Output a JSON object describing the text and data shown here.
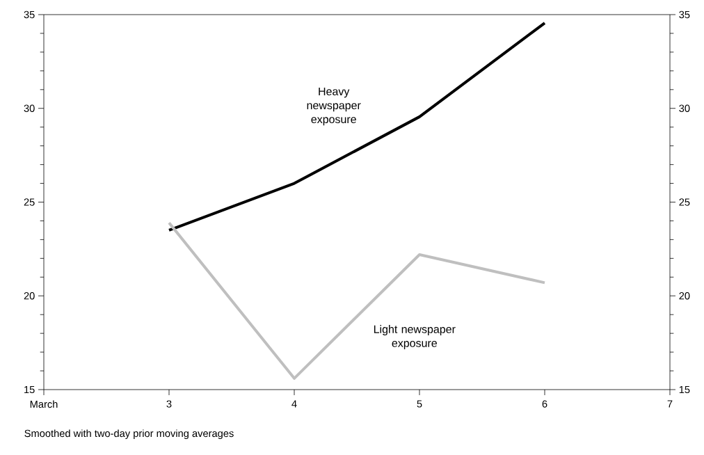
{
  "chart_data": {
    "type": "line",
    "x": [
      3,
      4,
      5,
      6
    ],
    "series": [
      {
        "name": "Heavy newspaper exposure",
        "color": "#000000",
        "values": [
          23.5,
          26.0,
          29.55,
          34.55
        ]
      },
      {
        "name": "Light newspaper exposure",
        "color": "#bfbfbf",
        "values": [
          23.9,
          15.6,
          22.2,
          20.7
        ]
      }
    ],
    "xlim": [
      2,
      7
    ],
    "xticks": [
      {
        "value": 2,
        "label": "March"
      },
      3,
      4,
      5,
      6,
      7
    ],
    "ylim": [
      15,
      35
    ],
    "yticks": [
      15,
      20,
      25,
      30,
      35
    ],
    "y2lim": [
      15,
      35
    ],
    "y2ticks": [
      15,
      20,
      25,
      30,
      35
    ],
    "annotations": [
      "Smoothed with two-day prior moving averages"
    ],
    "grid": false,
    "legend": false,
    "marker": "none",
    "line_style": "solid"
  }
}
